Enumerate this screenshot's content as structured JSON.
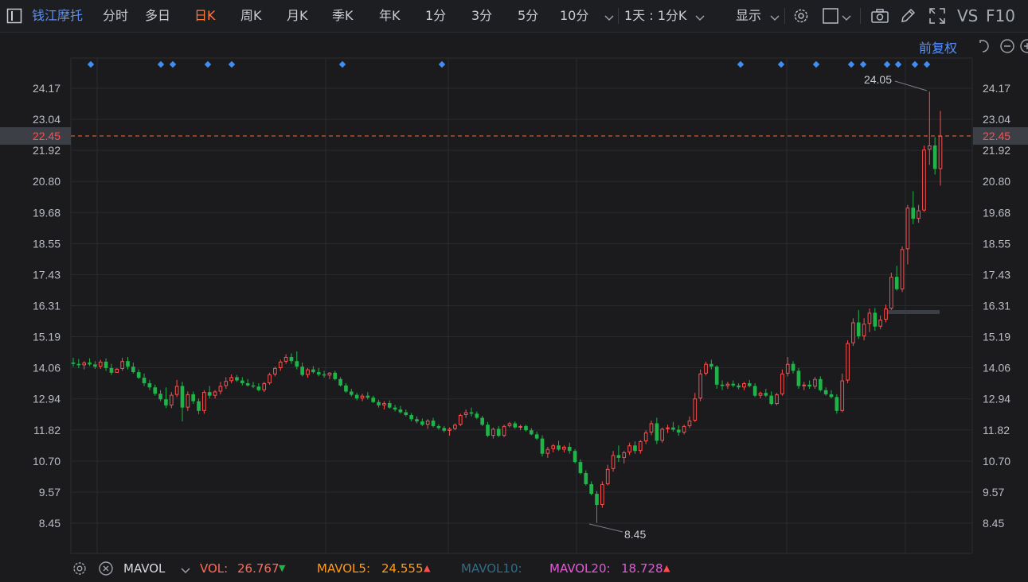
{
  "toolbar": {
    "stock_name": "钱江摩托",
    "tabs": [
      {
        "label": "分时",
        "active": false
      },
      {
        "label": "多日",
        "active": false
      },
      {
        "label": "日K",
        "active": true
      },
      {
        "label": "周K",
        "active": false
      },
      {
        "label": "月K",
        "active": false
      },
      {
        "label": "季K",
        "active": false
      },
      {
        "label": "年K",
        "active": false
      },
      {
        "label": "1分",
        "active": false
      },
      {
        "label": "3分",
        "active": false
      },
      {
        "label": "5分",
        "active": false
      },
      {
        "label": "10分",
        "active": false
      }
    ],
    "period_select": "1天 : 1分K",
    "display_label": "显示",
    "vs_label": "VS",
    "f10_label": "F10",
    "icons": [
      "panel-toggle-icon",
      "chevron-down-icon",
      "gear-icon",
      "square-icon",
      "camera-icon",
      "pencil-icon",
      "fullscreen-icon"
    ]
  },
  "subbar": {
    "adjust_label": "前复权",
    "icons": [
      "undo-icon",
      "zoom-out-icon",
      "zoom-in-icon"
    ]
  },
  "chart_data": {
    "type": "candlestick",
    "y_ticks": [
      "24.17",
      "23.04",
      "21.92",
      "20.80",
      "19.68",
      "18.55",
      "17.43",
      "16.31",
      "15.19",
      "14.06",
      "12.94",
      "11.82",
      "10.70",
      "9.57",
      "8.45"
    ],
    "current_price": "22.45",
    "max_label": "24.05",
    "min_label": "8.45",
    "up_color": "#ff4d4d",
    "down_color": "#1fb34a",
    "last_price_line_color": "#ff6a2a",
    "ohlc": [
      [
        14.25,
        14.42,
        14.1,
        14.2
      ],
      [
        14.2,
        14.38,
        14.05,
        14.15
      ],
      [
        14.15,
        14.3,
        14.0,
        14.25
      ],
      [
        14.25,
        14.4,
        14.12,
        14.18
      ],
      [
        14.18,
        14.3,
        14.02,
        14.1
      ],
      [
        14.1,
        14.35,
        14.02,
        14.28
      ],
      [
        14.28,
        14.4,
        13.95,
        14.05
      ],
      [
        14.05,
        14.2,
        13.8,
        13.88
      ],
      [
        13.88,
        14.05,
        13.9,
        14.02
      ],
      [
        14.02,
        14.42,
        13.95,
        14.3
      ],
      [
        14.3,
        14.45,
        14.0,
        14.1
      ],
      [
        14.1,
        14.25,
        13.85,
        13.9
      ],
      [
        13.9,
        14.0,
        13.65,
        13.7
      ],
      [
        13.7,
        13.85,
        13.4,
        13.5
      ],
      [
        13.5,
        13.62,
        13.25,
        13.35
      ],
      [
        13.35,
        13.45,
        13.05,
        13.12
      ],
      [
        13.12,
        13.25,
        12.85,
        12.92
      ],
      [
        12.92,
        13.35,
        12.6,
        12.7
      ],
      [
        12.7,
        13.18,
        12.6,
        13.08
      ],
      [
        13.08,
        13.62,
        13.0,
        13.4
      ],
      [
        13.4,
        13.55,
        12.12,
        12.62
      ],
      [
        12.62,
        13.2,
        12.5,
        13.1
      ],
      [
        13.1,
        13.2,
        12.75,
        12.85
      ],
      [
        12.85,
        12.95,
        12.38,
        12.5
      ],
      [
        12.5,
        13.25,
        12.4,
        13.18
      ],
      [
        13.18,
        13.4,
        12.95,
        13.05
      ],
      [
        13.05,
        13.25,
        12.95,
        13.2
      ],
      [
        13.2,
        13.55,
        13.1,
        13.4
      ],
      [
        13.4,
        13.72,
        13.3,
        13.58
      ],
      [
        13.58,
        13.82,
        13.5,
        13.72
      ],
      [
        13.72,
        13.8,
        13.55,
        13.6
      ],
      [
        13.6,
        13.72,
        13.42,
        13.5
      ],
      [
        13.5,
        13.65,
        13.38,
        13.42
      ],
      [
        13.42,
        13.55,
        13.32,
        13.38
      ],
      [
        13.38,
        13.5,
        13.2,
        13.25
      ],
      [
        13.25,
        13.55,
        13.18,
        13.5
      ],
      [
        13.5,
        13.88,
        13.45,
        13.82
      ],
      [
        13.82,
        14.1,
        13.75,
        14.05
      ],
      [
        14.05,
        14.35,
        13.95,
        14.28
      ],
      [
        14.28,
        14.55,
        14.2,
        14.45
      ],
      [
        14.45,
        14.58,
        14.2,
        14.3
      ],
      [
        14.3,
        14.65,
        14.0,
        14.1
      ],
      [
        14.1,
        14.25,
        13.75,
        13.8
      ],
      [
        13.8,
        14.05,
        13.7,
        14.0
      ],
      [
        14.0,
        14.12,
        13.85,
        13.9
      ],
      [
        13.9,
        14.05,
        13.75,
        13.82
      ],
      [
        13.82,
        13.95,
        13.7,
        13.78
      ],
      [
        13.78,
        13.9,
        13.65,
        13.88
      ],
      [
        13.88,
        13.95,
        13.6,
        13.65
      ],
      [
        13.65,
        13.72,
        13.38,
        13.42
      ],
      [
        13.42,
        13.5,
        13.15,
        13.2
      ],
      [
        13.2,
        13.3,
        13.02,
        13.08
      ],
      [
        13.08,
        13.15,
        12.88,
        12.95
      ],
      [
        12.95,
        13.12,
        12.85,
        13.05
      ],
      [
        13.05,
        13.18,
        12.92,
        12.98
      ],
      [
        12.98,
        13.05,
        12.78,
        12.82
      ],
      [
        12.82,
        12.9,
        12.62,
        12.7
      ],
      [
        12.7,
        12.85,
        12.55,
        12.78
      ],
      [
        12.78,
        12.88,
        12.58,
        12.62
      ],
      [
        12.62,
        12.72,
        12.48,
        12.55
      ],
      [
        12.55,
        12.68,
        12.4,
        12.45
      ],
      [
        12.45,
        12.55,
        12.3,
        12.35
      ],
      [
        12.35,
        12.42,
        12.12,
        12.2
      ],
      [
        12.2,
        12.3,
        12.05,
        12.12
      ],
      [
        12.12,
        12.22,
        11.95,
        12.0
      ],
      [
        12.0,
        12.2,
        11.85,
        12.15
      ],
      [
        12.15,
        12.25,
        11.9,
        11.95
      ],
      [
        11.95,
        12.02,
        11.82,
        11.88
      ],
      [
        11.88,
        11.95,
        11.72,
        11.78
      ],
      [
        11.78,
        11.9,
        11.6,
        11.85
      ],
      [
        11.85,
        12.05,
        11.8,
        12.0
      ],
      [
        12.0,
        12.4,
        11.95,
        12.35
      ],
      [
        12.35,
        12.55,
        12.25,
        12.45
      ],
      [
        12.45,
        12.62,
        12.3,
        12.4
      ],
      [
        12.4,
        12.48,
        12.2,
        12.25
      ],
      [
        12.25,
        12.32,
        11.95,
        12.0
      ],
      [
        12.0,
        12.1,
        11.55,
        11.6
      ],
      [
        11.6,
        11.9,
        11.5,
        11.85
      ],
      [
        11.85,
        11.95,
        11.55,
        11.6
      ],
      [
        11.6,
        12.0,
        11.55,
        11.95
      ],
      [
        11.95,
        12.1,
        11.9,
        12.05
      ],
      [
        12.05,
        12.12,
        11.85,
        11.9
      ],
      [
        11.9,
        12.0,
        11.8,
        11.95
      ],
      [
        11.95,
        12.0,
        11.75,
        11.8
      ],
      [
        11.8,
        11.88,
        11.62,
        11.65
      ],
      [
        11.65,
        11.75,
        11.45,
        11.5
      ],
      [
        11.5,
        11.62,
        10.85,
        10.95
      ],
      [
        10.95,
        11.2,
        10.8,
        11.12
      ],
      [
        11.12,
        11.3,
        11.0,
        11.25
      ],
      [
        11.25,
        11.42,
        11.05,
        11.1
      ],
      [
        11.1,
        11.25,
        11.0,
        11.2
      ],
      [
        11.2,
        11.35,
        10.95,
        11.05
      ],
      [
        11.05,
        11.12,
        10.6,
        10.65
      ],
      [
        10.65,
        10.75,
        10.2,
        10.25
      ],
      [
        10.25,
        10.35,
        9.8,
        9.85
      ],
      [
        9.85,
        9.95,
        9.45,
        9.5
      ],
      [
        9.5,
        9.6,
        8.45,
        9.1
      ],
      [
        9.1,
        9.95,
        9.0,
        9.85
      ],
      [
        9.85,
        10.55,
        9.8,
        10.4
      ],
      [
        10.4,
        11.05,
        10.3,
        10.9
      ],
      [
        10.9,
        11.25,
        10.65,
        10.8
      ],
      [
        10.8,
        11.05,
        10.6,
        11.0
      ],
      [
        11.0,
        11.35,
        10.9,
        11.25
      ],
      [
        11.25,
        11.4,
        10.95,
        11.05
      ],
      [
        11.05,
        11.45,
        10.95,
        11.4
      ],
      [
        11.4,
        11.8,
        11.3,
        11.72
      ],
      [
        11.72,
        12.15,
        11.62,
        12.05
      ],
      [
        12.05,
        12.25,
        11.3,
        11.42
      ],
      [
        11.42,
        11.9,
        11.35,
        11.85
      ],
      [
        11.85,
        12.0,
        11.7,
        11.9
      ],
      [
        11.9,
        12.1,
        11.75,
        11.82
      ],
      [
        11.82,
        11.98,
        11.6,
        11.72
      ],
      [
        11.72,
        12.0,
        11.65,
        11.95
      ],
      [
        11.95,
        12.3,
        11.88,
        12.15
      ],
      [
        12.15,
        13.15,
        12.1,
        12.95
      ],
      [
        12.95,
        14.0,
        12.85,
        13.85
      ],
      [
        13.85,
        14.28,
        13.78,
        14.2
      ],
      [
        14.2,
        14.35,
        14.0,
        14.1
      ],
      [
        14.1,
        14.15,
        13.3,
        13.45
      ],
      [
        13.45,
        13.6,
        13.25,
        13.4
      ],
      [
        13.4,
        13.55,
        13.3,
        13.48
      ],
      [
        13.48,
        13.6,
        13.35,
        13.42
      ],
      [
        13.42,
        13.5,
        13.28,
        13.35
      ],
      [
        13.35,
        13.55,
        13.25,
        13.5
      ],
      [
        13.5,
        13.62,
        13.35,
        13.4
      ],
      [
        13.4,
        13.5,
        13.0,
        13.05
      ],
      [
        13.05,
        13.2,
        12.95,
        13.15
      ],
      [
        13.15,
        13.3,
        13.0,
        13.05
      ],
      [
        13.05,
        13.2,
        12.7,
        12.75
      ],
      [
        12.75,
        13.15,
        12.7,
        13.1
      ],
      [
        13.1,
        14.0,
        13.05,
        13.85
      ],
      [
        13.85,
        14.45,
        13.75,
        14.2
      ],
      [
        14.2,
        14.3,
        13.85,
        13.95
      ],
      [
        13.95,
        14.05,
        13.3,
        13.4
      ],
      [
        13.4,
        13.55,
        13.25,
        13.45
      ],
      [
        13.45,
        13.6,
        13.3,
        13.38
      ],
      [
        13.38,
        13.72,
        13.3,
        13.65
      ],
      [
        13.65,
        13.75,
        13.2,
        13.25
      ],
      [
        13.25,
        13.35,
        13.05,
        13.1
      ],
      [
        13.1,
        13.25,
        12.95,
        13.0
      ],
      [
        13.0,
        13.1,
        12.4,
        12.5
      ],
      [
        12.5,
        13.85,
        12.45,
        13.6
      ],
      [
        13.6,
        15.05,
        13.5,
        14.95
      ],
      [
        14.95,
        15.85,
        14.85,
        15.7
      ],
      [
        15.7,
        16.15,
        15.1,
        15.2
      ],
      [
        15.2,
        15.85,
        15.05,
        15.65
      ],
      [
        15.65,
        16.2,
        15.35,
        16.05
      ],
      [
        16.05,
        16.22,
        15.4,
        15.55
      ],
      [
        15.55,
        15.95,
        15.45,
        15.8
      ],
      [
        15.8,
        16.35,
        15.7,
        16.2
      ],
      [
        16.2,
        17.5,
        16.15,
        17.35
      ],
      [
        17.35,
        17.75,
        16.85,
        16.9
      ],
      [
        16.9,
        18.45,
        16.8,
        18.35
      ],
      [
        18.35,
        19.95,
        17.8,
        19.85
      ],
      [
        19.85,
        20.45,
        19.25,
        19.45
      ],
      [
        19.45,
        19.95,
        19.3,
        19.75
      ],
      [
        19.75,
        22.1,
        19.7,
        21.95
      ],
      [
        21.95,
        24.05,
        21.4,
        22.1
      ],
      [
        22.1,
        22.4,
        21.05,
        21.25
      ],
      [
        21.25,
        23.35,
        20.65,
        22.45
      ]
    ]
  },
  "bottom": {
    "indicator_name": "MAVOL",
    "vol_label": "VOL:",
    "vol_value": "26.767",
    "vol_trend": "▼",
    "mavol5_label": "MAVOL5:",
    "mavol5_value": "24.555",
    "mavol5_trend": "▲",
    "mavol10_label": "MAVOL10:",
    "mavol20_label": "MAVOL20:",
    "mavol20_value": "18.728",
    "mavol20_trend": "▲",
    "colors": {
      "vol": "#ff6a5a",
      "mavol5": "#ff9b1a",
      "mavol10": "#2f6d86",
      "mavol20": "#e25bd6",
      "down": "#1fb34a",
      "up": "#ff4d4d"
    }
  }
}
